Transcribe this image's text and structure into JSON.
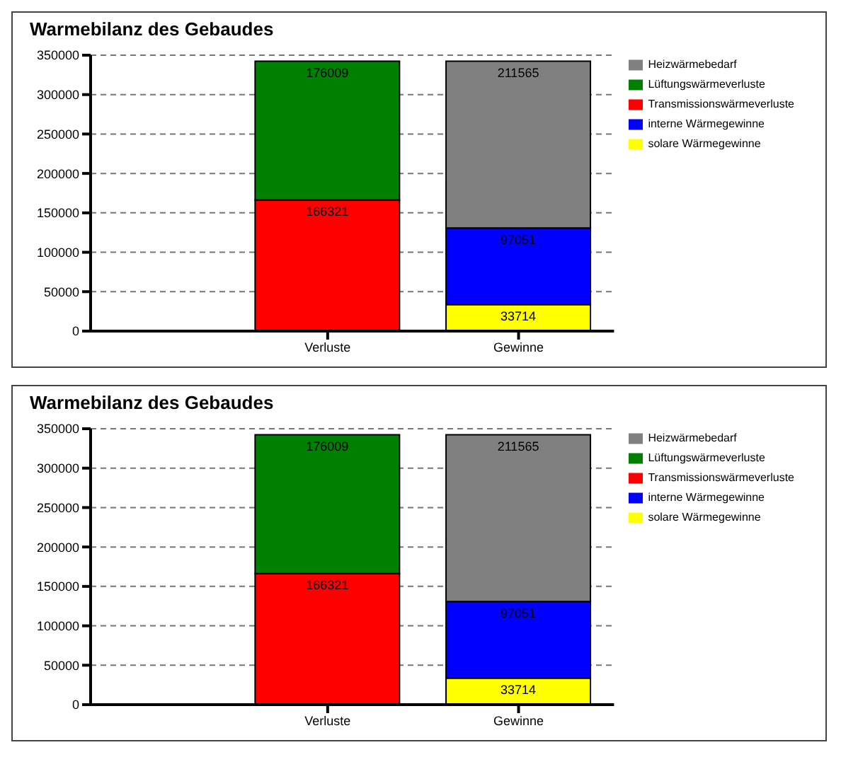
{
  "chart_data": [
    {
      "type": "bar",
      "title": "Warmebilanz des Gebaudes",
      "categories": [
        "Verluste",
        "Gewinne"
      ],
      "stacked": true,
      "data_labels": true,
      "grid": "y",
      "legend": "right",
      "ylim": [
        0,
        350000
      ],
      "yticks": [
        0,
        50000,
        100000,
        150000,
        200000,
        250000,
        300000,
        350000
      ],
      "series": [
        {
          "name": "Transmissionswärmeverluste",
          "color": "#ff0000",
          "values": [
            166321,
            null
          ]
        },
        {
          "name": "Lüftungswärmeverluste",
          "color": "#008000",
          "values": [
            176009,
            null
          ]
        },
        {
          "name": "solare Wärmegewinne",
          "color": "#ffff00",
          "values": [
            null,
            33714
          ]
        },
        {
          "name": "interne Wärmegewinne",
          "color": "#0000ff",
          "values": [
            null,
            97051
          ]
        },
        {
          "name": "Heizwärmebedarf",
          "color": "#808080",
          "values": [
            null,
            211565
          ]
        }
      ]
    },
    {
      "type": "bar",
      "title": "Warmebilanz des Gebaudes",
      "categories": [
        "Verluste",
        "Gewinne"
      ],
      "stacked": true,
      "data_labels": true,
      "grid": "y",
      "legend": "right",
      "ylim": [
        0,
        350000
      ],
      "yticks": [
        0,
        50000,
        100000,
        150000,
        200000,
        250000,
        300000,
        350000
      ],
      "series": [
        {
          "name": "Transmissionswärmeverluste",
          "color": "#ff0000",
          "values": [
            166321,
            null
          ]
        },
        {
          "name": "Lüftungswärmeverluste",
          "color": "#008000",
          "values": [
            176009,
            null
          ]
        },
        {
          "name": "solare Wärmegewinne",
          "color": "#ffff00",
          "values": [
            null,
            33714
          ]
        },
        {
          "name": "interne Wärmegewinne",
          "color": "#0000ff",
          "values": [
            null,
            97051
          ]
        },
        {
          "name": "Heizwärmebedarf",
          "color": "#808080",
          "values": [
            null,
            211565
          ]
        }
      ]
    }
  ]
}
